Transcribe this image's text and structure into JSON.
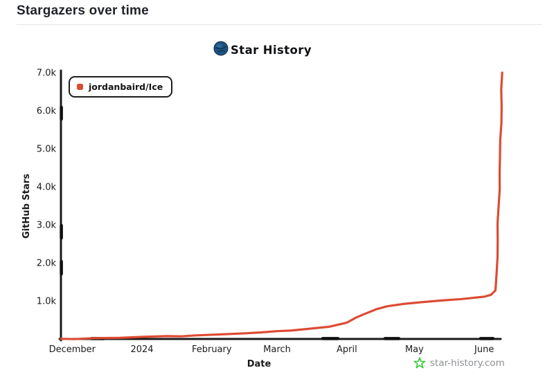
{
  "page": {
    "title": "Stargazers over time"
  },
  "chart": {
    "watermark": {
      "text": "star-history.com",
      "icon": "green-star-icon",
      "icon_color": "#3ecc3e",
      "text_color": "#8e9093"
    }
  },
  "colors": {
    "series_red": "#dd4b32",
    "axis_black": "#1a1a1a",
    "header_text": "#1f2328",
    "divider": "#e4e6e8",
    "logo_blue": "#1d5380",
    "watermark_green": "#3ecc3e",
    "watermark_gray": "#8e9093"
  },
  "chart_data": {
    "type": "line",
    "title": "Star History",
    "xlabel": "Date",
    "ylabel": "GitHub Stars",
    "grid": false,
    "legend_position": "top-left",
    "x_domain": [
      "2023-11-26",
      "2024-06-12"
    ],
    "x_tick_dates": [
      "2023-12-01",
      "2024-01-01",
      "2024-02-01",
      "2024-03-01",
      "2024-04-01",
      "2024-05-01",
      "2024-06-01"
    ],
    "x_tick_labels": [
      "December",
      "2024",
      "February",
      "March",
      "April",
      "May",
      "June"
    ],
    "ylim": [
      0,
      7000
    ],
    "y_ticks": [
      1000,
      2000,
      3000,
      4000,
      5000,
      6000,
      7000
    ],
    "y_tick_labels": [
      "1.0k",
      "2.0k",
      "3.0k",
      "4.0k",
      "5.0k",
      "6.0k",
      "7.0k"
    ],
    "series": [
      {
        "name": "jordanbaird/Ice",
        "color": "#dd4b32",
        "points": [
          [
            "2023-11-26",
            3
          ],
          [
            "2023-12-08",
            15
          ],
          [
            "2023-12-22",
            30
          ],
          [
            "2024-01-01",
            55
          ],
          [
            "2024-01-12",
            75
          ],
          [
            "2024-01-25",
            95
          ],
          [
            "2024-02-05",
            120
          ],
          [
            "2024-02-16",
            150
          ],
          [
            "2024-03-01",
            205
          ],
          [
            "2024-03-13",
            255
          ],
          [
            "2024-03-24",
            320
          ],
          [
            "2024-04-01",
            430
          ],
          [
            "2024-04-05",
            560
          ],
          [
            "2024-04-09",
            660
          ],
          [
            "2024-04-14",
            780
          ],
          [
            "2024-04-19",
            860
          ],
          [
            "2024-04-26",
            920
          ],
          [
            "2024-05-04",
            965
          ],
          [
            "2024-05-13",
            1010
          ],
          [
            "2024-05-22",
            1050
          ],
          [
            "2024-06-01",
            1110
          ],
          [
            "2024-06-04",
            1160
          ],
          [
            "2024-06-06",
            1280
          ],
          [
            "2024-06-07",
            2600
          ],
          [
            "2024-06-08",
            4800
          ],
          [
            "2024-06-09",
            7000
          ]
        ]
      }
    ]
  }
}
